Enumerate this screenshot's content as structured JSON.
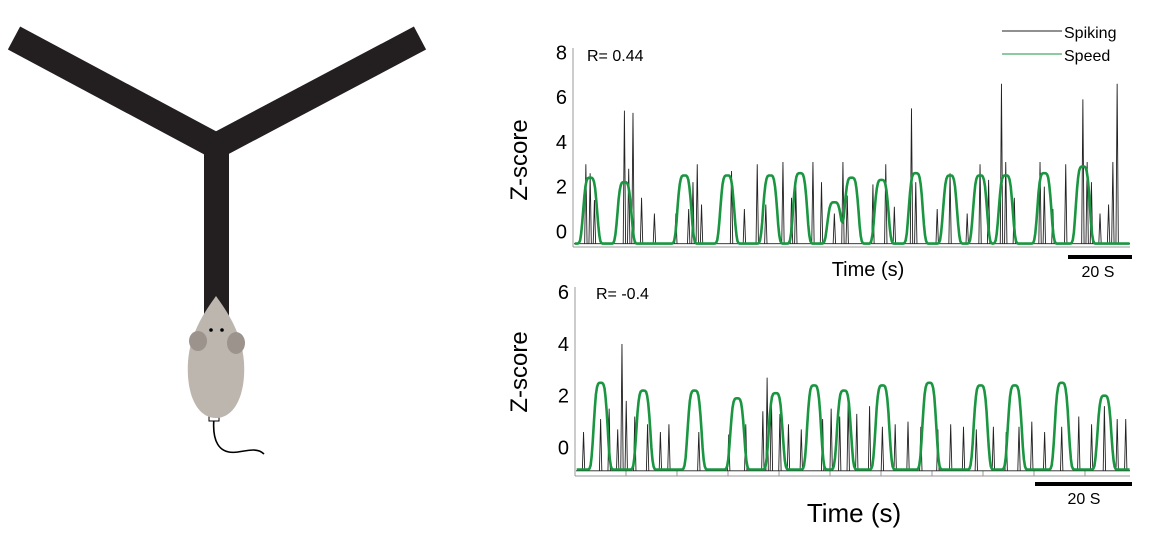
{
  "colors": {
    "spiking": "#222222",
    "speed": "#1a9641",
    "maze": "#231f20",
    "mouse_body": "#bdb6ae",
    "mouse_ear": "#9c948c"
  },
  "legend": {
    "spiking": "Spiking",
    "speed": "Speed"
  },
  "chart_data": [
    {
      "type": "line",
      "annotation": "R= 0.44",
      "ylabel": "Z-score",
      "xlabel": "Time (s)",
      "scale_bar": "20 S",
      "ylim": [
        -0.7,
        8.2
      ],
      "yticks": [
        "8",
        "6",
        "4",
        "2",
        "0"
      ],
      "ytick_values": [
        8,
        6,
        4,
        2,
        0
      ],
      "xlim": [
        0,
        130
      ],
      "grid": false,
      "legend_position": "top-right",
      "series": [
        {
          "name": "Spiking",
          "kind": "spikes",
          "baseline": -0.55,
          "peaks": [
            [
              3,
              3.0
            ],
            [
              4,
              2.6
            ],
            [
              5,
              1.4
            ],
            [
              12,
              5.4
            ],
            [
              13,
              2.8
            ],
            [
              14,
              5.3
            ],
            [
              16,
              1.5
            ],
            [
              19,
              0.8
            ],
            [
              24,
              0.8
            ],
            [
              27,
              1.0
            ],
            [
              28,
              2.2
            ],
            [
              29,
              3.0
            ],
            [
              30,
              1.2
            ],
            [
              37,
              2.7
            ],
            [
              40,
              1.0
            ],
            [
              43,
              3.0
            ],
            [
              45,
              1.2
            ],
            [
              49,
              3.1
            ],
            [
              51,
              1.5
            ],
            [
              52,
              2.0
            ],
            [
              56,
              3.1
            ],
            [
              58,
              2.2
            ],
            [
              61,
              0.8
            ],
            [
              63,
              3.1
            ],
            [
              64,
              1.6
            ],
            [
              70,
              2.1
            ],
            [
              73,
              3.0
            ],
            [
              75,
              1.1
            ],
            [
              79,
              5.5
            ],
            [
              80,
              2.2
            ],
            [
              85,
              1.0
            ],
            [
              88,
              2.6
            ],
            [
              92,
              0.8
            ],
            [
              95,
              3.0
            ],
            [
              97,
              2.3
            ],
            [
              100,
              6.6
            ],
            [
              101,
              3.1
            ],
            [
              103,
              1.5
            ],
            [
              109,
              3.1
            ],
            [
              110,
              2.0
            ],
            [
              112,
              1.0
            ],
            [
              115,
              3.0
            ],
            [
              119,
              5.9
            ],
            [
              120,
              3.1
            ],
            [
              121,
              2.2
            ],
            [
              123,
              0.8
            ],
            [
              125,
              1.2
            ],
            [
              126,
              3.1
            ],
            [
              127,
              6.6
            ]
          ]
        },
        {
          "name": "Speed",
          "kind": "bumps",
          "baseline": -0.55,
          "bumps": [
            [
              4,
              2.4
            ],
            [
              12,
              2.2
            ],
            [
              26,
              2.5
            ],
            [
              36,
              2.5
            ],
            [
              46,
              2.5
            ],
            [
              53,
              2.6
            ],
            [
              61,
              1.3
            ],
            [
              65,
              2.4
            ],
            [
              72,
              2.3
            ],
            [
              80,
              2.6
            ],
            [
              88,
              2.5
            ],
            [
              95,
              2.5
            ],
            [
              101,
              2.5
            ],
            [
              110,
              2.6
            ],
            [
              119,
              2.9
            ]
          ]
        }
      ]
    },
    {
      "type": "line",
      "annotation": "R= -0.4",
      "ylabel": "Z-score",
      "xlabel": "Time (s)",
      "scale_bar": "20 S",
      "ylim": [
        -1.1,
        6.2
      ],
      "yticks": [
        "6",
        "4",
        "2",
        "0"
      ],
      "ytick_values": [
        6,
        4,
        2,
        0
      ],
      "xlim": [
        0,
        130
      ],
      "grid": false,
      "series": [
        {
          "name": "Spiking",
          "kind": "spikes",
          "baseline": -0.9,
          "peaks": [
            [
              2,
              0.6
            ],
            [
              6,
              1.1
            ],
            [
              8,
              1.5
            ],
            [
              10,
              0.7
            ],
            [
              11,
              4.0
            ],
            [
              12,
              1.8
            ],
            [
              14,
              1.2
            ],
            [
              17,
              0.9
            ],
            [
              20,
              0.6
            ],
            [
              22,
              0.9
            ],
            [
              29,
              0.6
            ],
            [
              36,
              0.5
            ],
            [
              40,
              0.9
            ],
            [
              44,
              1.4
            ],
            [
              45,
              2.7
            ],
            [
              46,
              2.0
            ],
            [
              48,
              1.3
            ],
            [
              50,
              0.9
            ],
            [
              53,
              0.7
            ],
            [
              58,
              1.1
            ],
            [
              60,
              1.5
            ],
            [
              62,
              1.2
            ],
            [
              64,
              1.9
            ],
            [
              66,
              1.3
            ],
            [
              69,
              1.6
            ],
            [
              72,
              0.8
            ],
            [
              75,
              0.9
            ],
            [
              78,
              1.0
            ],
            [
              81,
              0.8
            ],
            [
              85,
              0.7
            ],
            [
              88,
              0.9
            ],
            [
              91,
              0.8
            ],
            [
              94,
              0.7
            ],
            [
              98,
              0.8
            ],
            [
              101,
              0.6
            ],
            [
              104,
              0.8
            ],
            [
              107,
              1.0
            ],
            [
              110,
              0.6
            ],
            [
              114,
              0.8
            ],
            [
              118,
              1.2
            ],
            [
              121,
              0.9
            ],
            [
              124,
              1.6
            ],
            [
              127,
              1.1
            ],
            [
              129,
              1.1
            ]
          ]
        },
        {
          "name": "Speed",
          "kind": "bumps",
          "baseline": -0.85,
          "bumps": [
            [
              6,
              2.5
            ],
            [
              16,
              2.2
            ],
            [
              28,
              2.2
            ],
            [
              38,
              1.9
            ],
            [
              47,
              2.1
            ],
            [
              56,
              2.4
            ],
            [
              63,
              2.2
            ],
            [
              72,
              2.4
            ],
            [
              83,
              2.5
            ],
            [
              95,
              2.4
            ],
            [
              103,
              2.4
            ],
            [
              114,
              2.5
            ],
            [
              124,
              2.0
            ]
          ]
        }
      ]
    }
  ]
}
